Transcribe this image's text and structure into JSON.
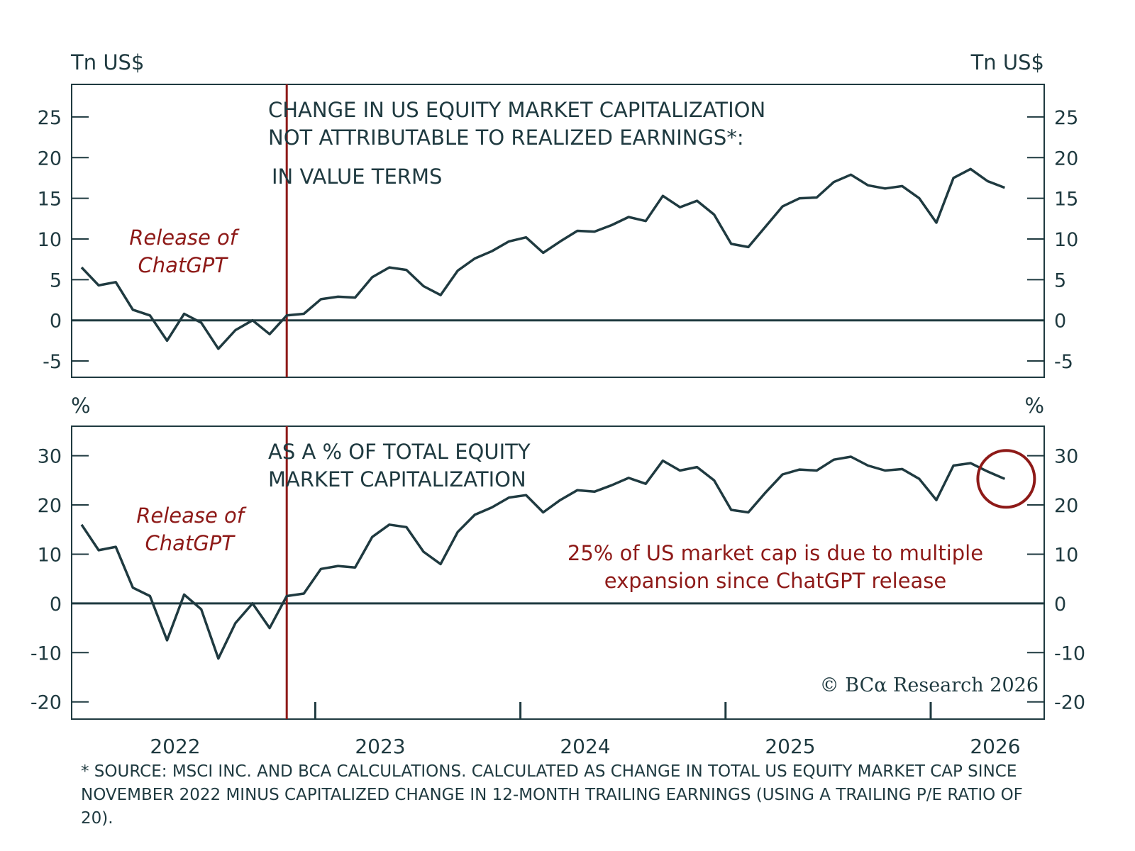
{
  "chart_data": [
    {
      "type": "line",
      "title": "CHANGE IN US EQUITY MARKET CAPITALIZATION",
      "title_line2": "NOT ATTRIBUTABLE TO REALIZED EARNINGS*:",
      "subtitle": "IN VALUE TERMS",
      "ylabel_left": "Tn US$",
      "ylabel_right": "Tn US$",
      "ylim": [
        -7,
        29
      ],
      "yticks": [
        "25",
        "20",
        "15",
        "10",
        "5",
        "0",
        "-5"
      ],
      "ytick_values": [
        25,
        20,
        15,
        10,
        5,
        0,
        -5
      ],
      "event_label_line1": "Release of",
      "event_label_line2": "ChatGPT",
      "series": [
        {
          "values": [
            6.5,
            4.3,
            4.7,
            1.3,
            0.6,
            -2.5,
            0.8,
            -0.3,
            -3.5,
            -1.2,
            0.0,
            -1.7,
            0.6,
            0.8,
            2.6,
            2.9,
            2.8,
            5.3,
            6.5,
            6.2,
            4.2,
            3.1,
            6.1,
            7.6,
            8.5,
            9.7,
            10.2,
            8.3,
            9.7,
            11.0,
            10.9,
            11.7,
            12.7,
            12.2,
            15.3,
            13.9,
            14.7,
            13.0,
            9.4,
            9.0,
            11.5,
            14.0,
            15.0,
            15.1,
            17.0,
            17.9,
            16.6,
            16.2,
            16.5,
            15.0,
            12.0,
            17.5,
            18.6,
            17.1,
            16.3
          ]
        }
      ]
    },
    {
      "type": "line",
      "title": "AS A % OF TOTAL EQUITY",
      "title_line2": "MARKET CAPITALIZATION",
      "ylabel_left": "%",
      "ylabel_right": "%",
      "ylim": [
        -23.5,
        36
      ],
      "yticks": [
        "30",
        "20",
        "10",
        "0",
        "-10",
        "-20"
      ],
      "ytick_values": [
        30,
        20,
        10,
        0,
        -10,
        -20
      ],
      "event_label_line1": "Release of",
      "event_label_line2": "ChatGPT",
      "annotation_line1": "25% of US market cap is due to multiple",
      "annotation_line2": "expansion since ChatGPT release",
      "credit": "© BCα Research 2026",
      "series": [
        {
          "values": [
            16.0,
            10.8,
            11.5,
            3.2,
            1.5,
            -7.5,
            1.8,
            -1.2,
            -11.2,
            -4.0,
            0.0,
            -5.0,
            1.5,
            2.0,
            7.0,
            7.6,
            7.3,
            13.5,
            16.0,
            15.5,
            10.5,
            8.0,
            14.5,
            18.0,
            19.5,
            21.5,
            22.0,
            18.5,
            21.0,
            23.0,
            22.7,
            24.0,
            25.5,
            24.3,
            29.0,
            27.0,
            27.7,
            25.0,
            19.0,
            18.5,
            22.5,
            26.2,
            27.2,
            27.0,
            29.2,
            29.8,
            28.0,
            27.0,
            27.3,
            25.3,
            21.0,
            28.0,
            28.5,
            26.8,
            25.3
          ]
        }
      ]
    }
  ],
  "x_axis": {
    "categories": [
      "2022",
      "2023",
      "2024",
      "2025",
      "2026"
    ],
    "start_month": "2021-11",
    "end_month": "2026-01",
    "event_month": "2022-11",
    "year_starts": [
      "2023-01",
      "2024-01",
      "2025-01",
      "2026-01"
    ]
  },
  "footnote": "* SOURCE: MSCI INC. AND BCA CALCULATIONS. CALCULATED AS CHANGE IN TOTAL US EQUITY MARKET CAP SINCE NOVEMBER 2022 MINUS CAPITALIZED CHANGE IN 12-MONTH TRAILING EARNINGS (USING A TRAILING P/E RATIO OF 20).",
  "colors": {
    "line": "#1f3a40",
    "event": "#8e1a18",
    "annotation": "#8e1a18",
    "frame": "#1f3a40"
  }
}
